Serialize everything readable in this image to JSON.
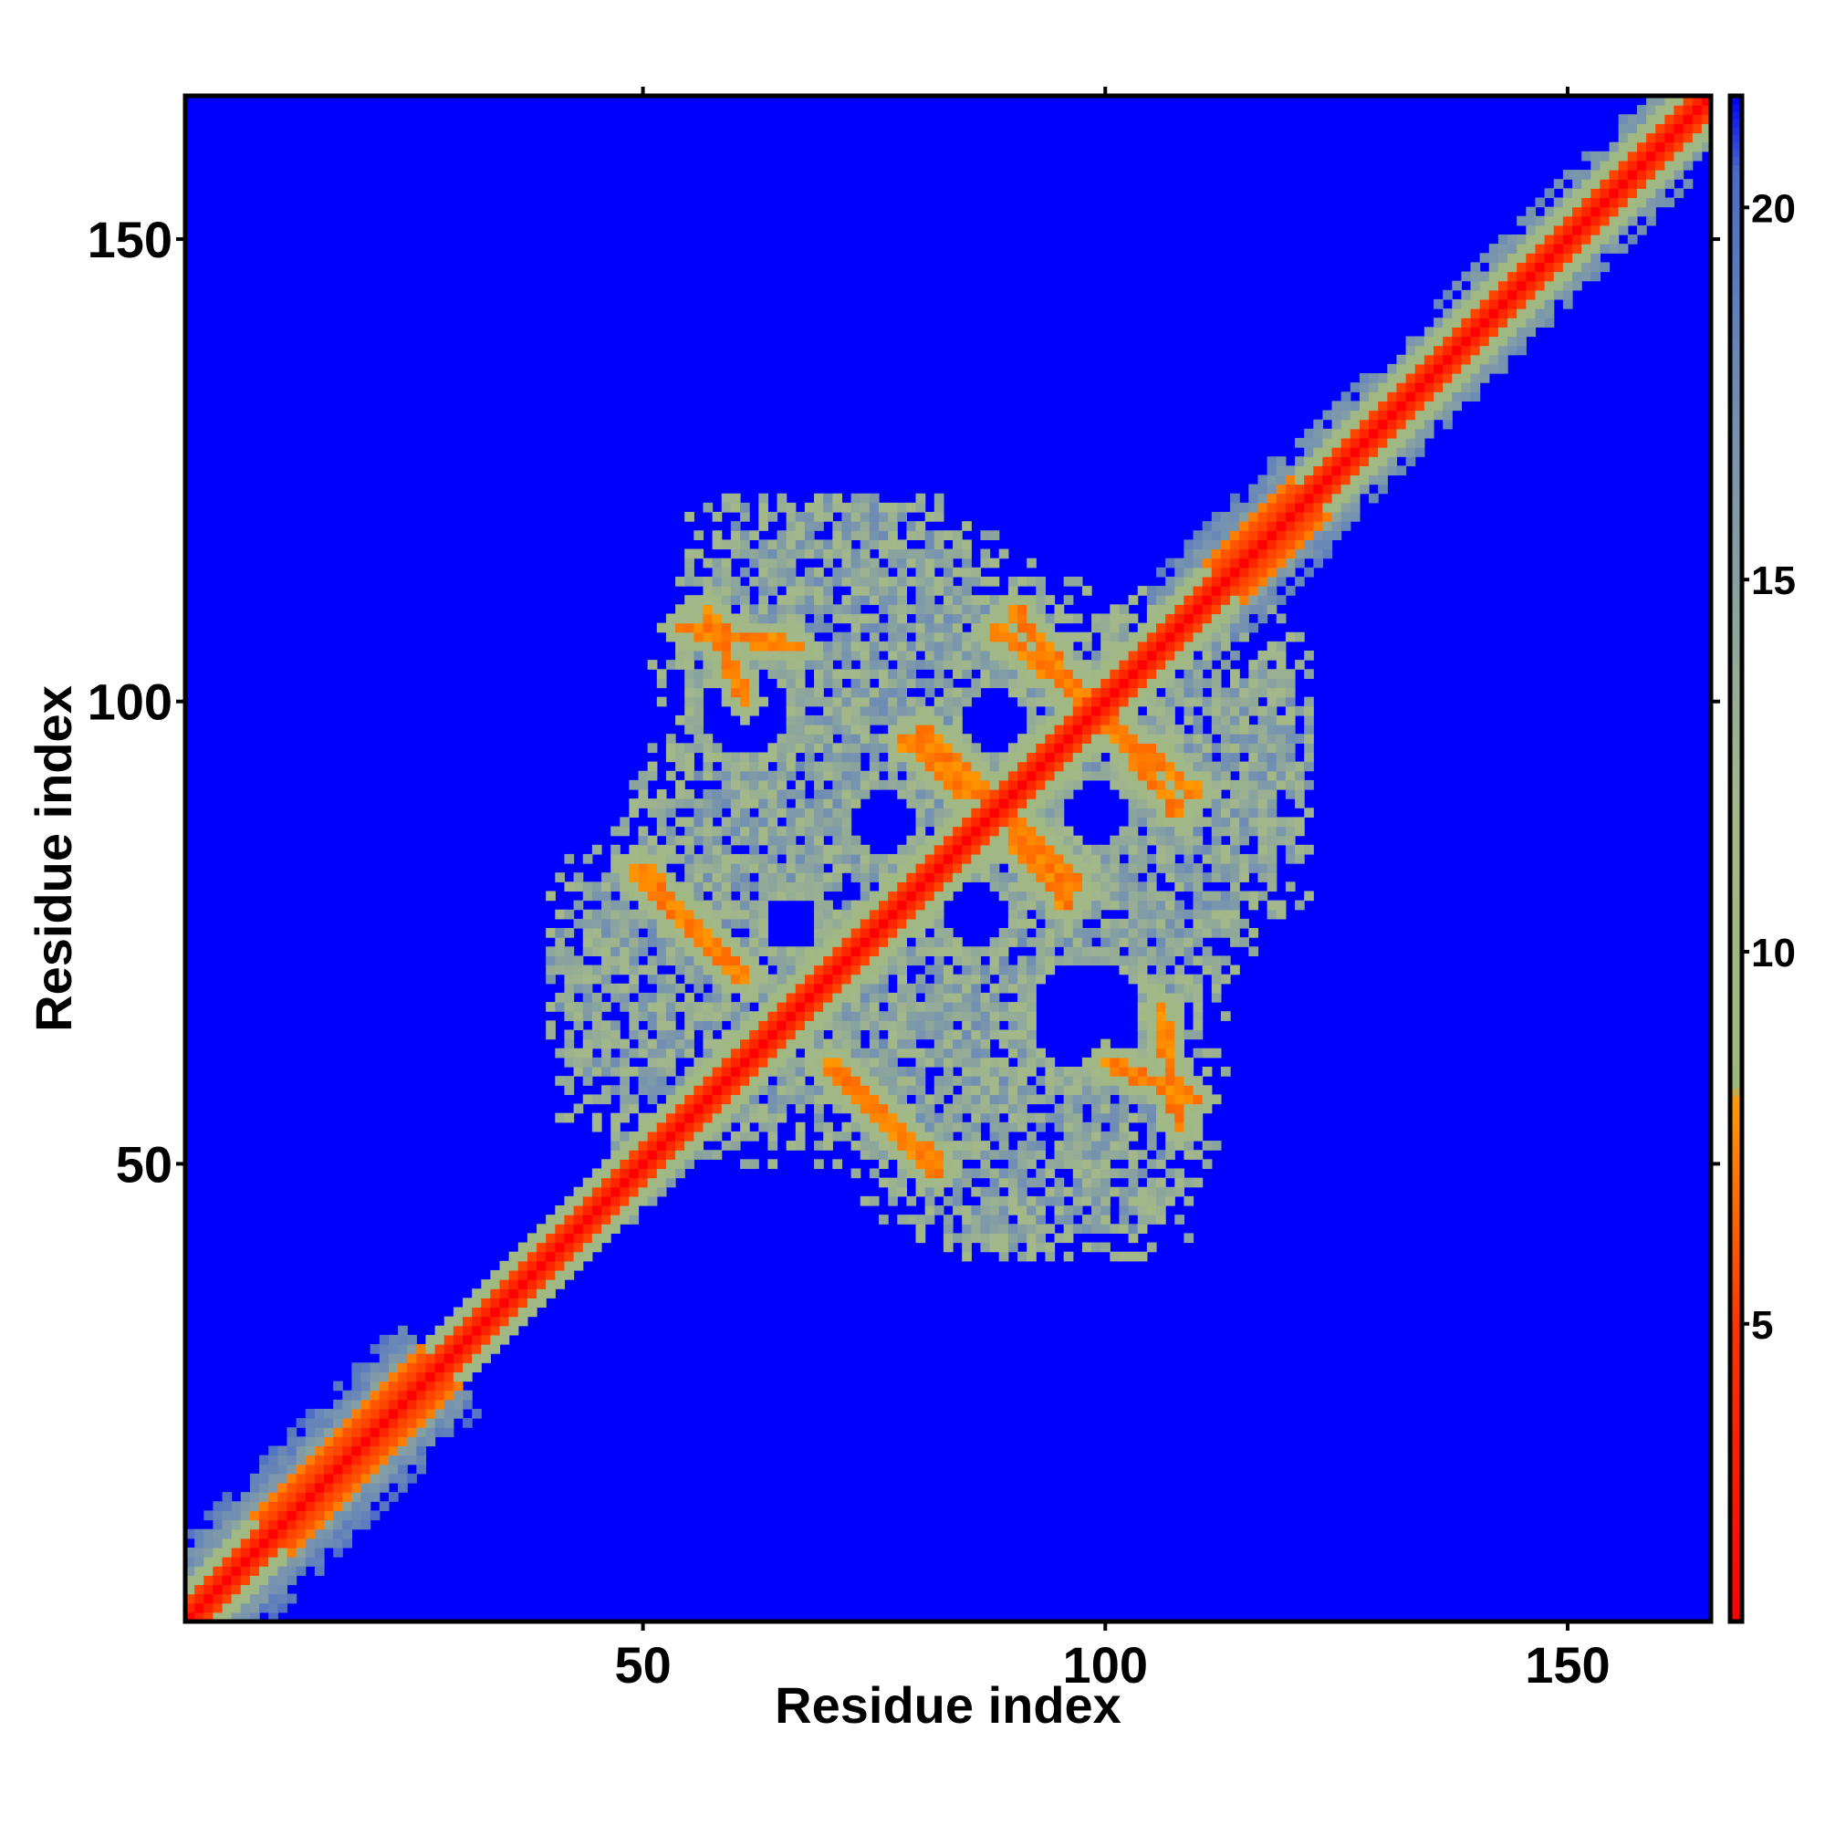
{
  "chart_data": {
    "type": "heatmap",
    "title": "",
    "xlabel": "Residue index",
    "ylabel": "Residue index",
    "xlim": [
      0.5,
      165.5
    ],
    "ylim": [
      0.5,
      165.5
    ],
    "xticks": [
      50,
      100,
      150
    ],
    "yticks": [
      50,
      100,
      150
    ],
    "xtick_labels": [
      "50",
      "100",
      "150"
    ],
    "ytick_labels": [
      "50",
      "100",
      "150"
    ],
    "n_residues": 165,
    "colorbar": {
      "range": [
        1,
        21.5
      ],
      "ticks": [
        5,
        10,
        15,
        20
      ],
      "tick_labels": [
        "5",
        "10",
        "15",
        "20"
      ],
      "stops": [
        {
          "value": 1,
          "color": "#ff0000"
        },
        {
          "value": 5,
          "color": "#ff3300"
        },
        {
          "value": 8,
          "color": "#ff9900"
        },
        {
          "value": 8.2,
          "color": "#9db87c"
        },
        {
          "value": 12,
          "color": "#a3b88a"
        },
        {
          "value": 17,
          "color": "#7592b0"
        },
        {
          "value": 20.5,
          "color": "#4a6ac8"
        },
        {
          "value": 21.5,
          "color": "#0000ff"
        }
      ]
    },
    "background_value": 21.5,
    "background_color": "#0000ff",
    "diagonal_value": 1,
    "features": {
      "diagonal_band": [
        {
          "from": 1,
          "to": 28,
          "halfwidth": 9
        },
        {
          "from": 28,
          "to": 45,
          "halfwidth": 4
        },
        {
          "from": 45,
          "to": 60,
          "halfwidth": 5
        },
        {
          "from": 108,
          "to": 122,
          "halfwidth": 8
        },
        {
          "from": 122,
          "to": 165,
          "halfwidth": 7
        }
      ],
      "helix_segments": [
        [
          10,
          28
        ],
        [
          113,
          122
        ]
      ],
      "central_block": {
        "x_range": [
          42,
          122
        ],
        "y_range": [
          40,
          122
        ]
      },
      "voids": [
        {
          "x": 61,
          "y": 99,
          "r": 5
        },
        {
          "x": 88,
          "y": 98,
          "r": 3.5
        },
        {
          "x": 76,
          "y": 87,
          "r": 3.5
        },
        {
          "x": 99,
          "y": 88,
          "r": 3.5
        },
        {
          "x": 86,
          "y": 77,
          "r": 3.5
        },
        {
          "x": 98,
          "y": 66,
          "r": 6
        },
        {
          "x": 66,
          "y": 76,
          "r": 3
        }
      ],
      "antidiagonal_contacts": [
        {
          "from": [
            88,
            108
          ],
          "to": [
            98,
            100
          ]
        },
        {
          "from": [
            100,
            98
          ],
          "to": [
            110,
            90
          ]
        },
        {
          "from": [
            78,
            96
          ],
          "to": [
            85,
            90
          ]
        },
        {
          "from": [
            90,
            87
          ],
          "to": [
            97,
            80
          ]
        },
        {
          "from": [
            49,
            82
          ],
          "to": [
            60,
            71
          ]
        },
        {
          "from": [
            70,
            61
          ],
          "to": [
            82,
            50
          ]
        },
        {
          "from": [
            54,
            108
          ],
          "to": [
            67,
            106
          ]
        },
        {
          "from": [
            100,
            61
          ],
          "to": [
            110,
            57
          ]
        }
      ]
    }
  }
}
